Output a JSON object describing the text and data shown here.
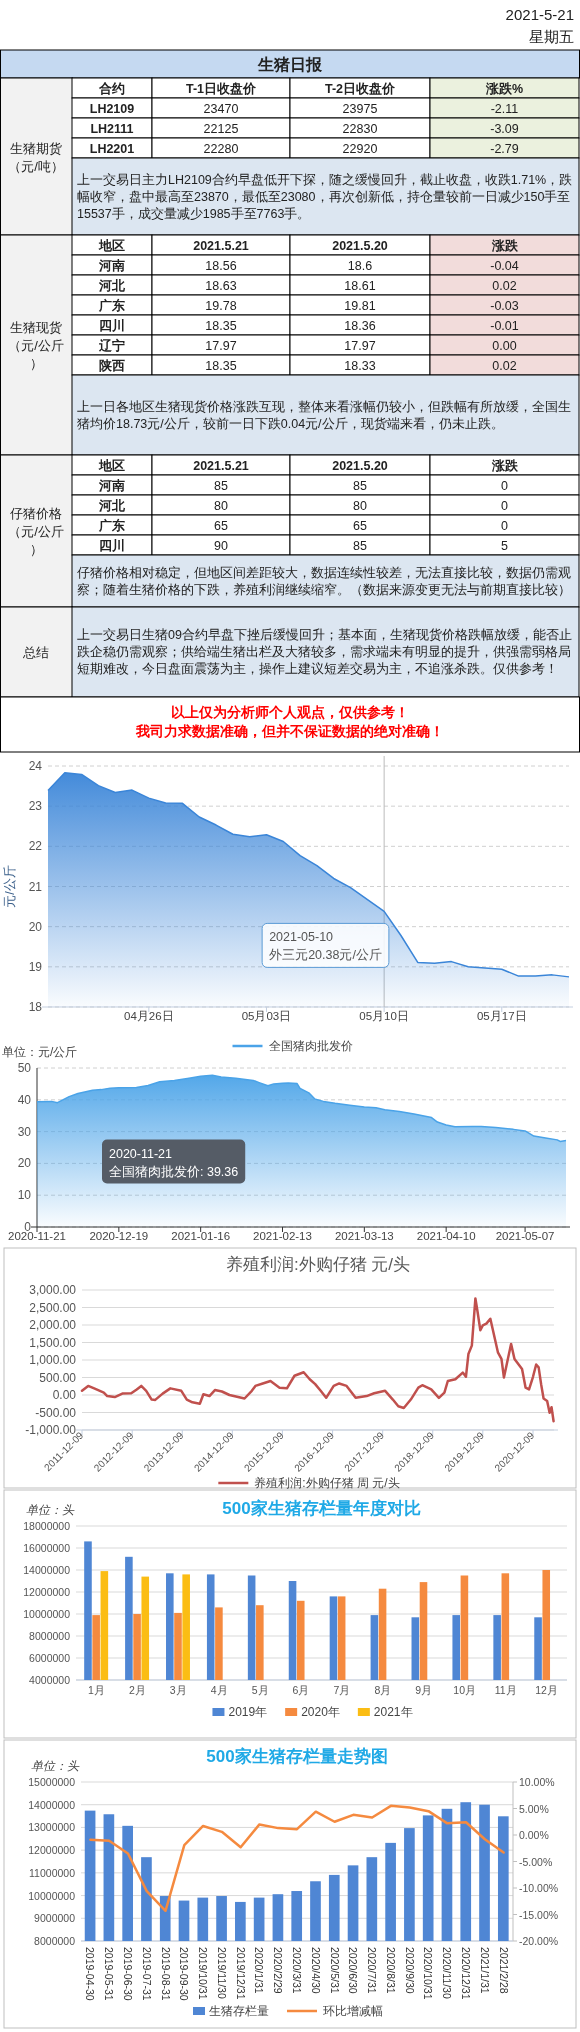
{
  "chart_data": [
    {
      "type": "other",
      "title": "生猪日报",
      "annotations": [
        "2021-5-21",
        "星期五"
      ]
    },
    {
      "type": "other",
      "ylabel": "生猪期货（元/吨）",
      "categories": [
        "合约",
        "T-1日收盘价",
        "T-2日收盘价",
        "涨跌%"
      ],
      "y_categories": [
        "LH2109",
        "LH2111",
        "LH2201"
      ],
      "cell_labels": [
        [
          "23470",
          "23975",
          "-2.11"
        ],
        [
          "22125",
          "22830",
          "-3.09"
        ],
        [
          "22280",
          "22920",
          "-2.79"
        ]
      ],
      "colors": [
        null,
        null,
        null,
        "#ebf1de"
      ],
      "annotations": [
        "上一交易日主力LH2109合约早盘低开下探，随之缓慢回升，截止收盘，收跌1.71%，跌幅收窄，盘中最高至23870，最低至23080，再次创新低，持仓量较前一日减少150手至15537手，成交量减少1985手至7763手。"
      ]
    },
    {
      "type": "other",
      "ylabel": "生猪现货（元/公斤）",
      "categories": [
        "地区",
        "2021.5.21",
        "2021.5.20",
        "涨跌"
      ],
      "y_categories": [
        "河南",
        "河北",
        "广东",
        "四川",
        "辽宁",
        "陕西"
      ],
      "cell_labels": [
        [
          "18.56",
          "18.6",
          "-0.04"
        ],
        [
          "18.63",
          "18.61",
          "0.02"
        ],
        [
          "19.78",
          "19.81",
          "-0.03"
        ],
        [
          "18.35",
          "18.36",
          "-0.01"
        ],
        [
          "17.97",
          "17.97",
          "0.00"
        ],
        [
          "18.35",
          "18.33",
          "0.02"
        ]
      ],
      "colors": [
        null,
        null,
        null,
        "#f2dcdb"
      ],
      "annotations": [
        "上一日各地区生猪现货价格涨跌互现，整体来看涨幅仍较小，但跌幅有所放缓，全国生猪均价18.73元/公斤，较前一日下跌0.04元/公斤，现货端来看，仍未止跌。"
      ]
    },
    {
      "type": "other",
      "ylabel": "仔猪价格（元/公斤）",
      "categories": [
        "地区",
        "2021.5.21",
        "2021.5.20",
        "涨跌"
      ],
      "y_categories": [
        "河南",
        "河北",
        "广东",
        "四川"
      ],
      "cell_labels": [
        [
          "85",
          "85",
          "0"
        ],
        [
          "80",
          "80",
          "0"
        ],
        [
          "65",
          "65",
          "0"
        ],
        [
          "90",
          "85",
          "5"
        ]
      ],
      "annotations": [
        "仔猪价格相对稳定，但地区间差距较大，数据连续性较差，无法直接比较，数据仍需观察；随着生猪价格的下跌，养殖利润继续缩窄。（数据来源变更无法与前期直接比较）"
      ]
    },
    {
      "type": "other",
      "ylabel": "总结",
      "annotations": [
        "上一交易日生猪09合约早盘下挫后缓慢回升；基本面，生猪现货价格跌幅放缓，能否止跌企稳仍需观察；供给端生猪出栏及大猪较多，需求端未有明显的提升，供强需弱格局短期难改，今日盘面震荡为主，操作上建议短差交易为主，不追涨杀跌。仅供参考！"
      ]
    },
    {
      "type": "other",
      "color": "#ff0000",
      "annotations": [
        "以上仅为分析师个人观点，仅供参考！",
        "我司力求数据准确，但并不保证数据的绝对准确！"
      ]
    },
    {
      "type": "area",
      "ylabel": "元/公斤",
      "x": [
        "2021-04-20",
        "2021-04-21",
        "2021-04-22",
        "2021-04-23",
        "2021-04-24",
        "2021-04-25",
        "2021-04-26",
        "2021-04-27",
        "2021-04-28",
        "2021-04-29",
        "2021-04-30",
        "2021-05-01",
        "2021-05-02",
        "2021-05-03",
        "2021-05-04",
        "2021-05-05",
        "2021-05-06",
        "2021-05-07",
        "2021-05-08",
        "2021-05-10",
        "2021-05-11",
        "2021-05-12",
        "2021-05-13",
        "2021-05-14",
        "2021-05-15",
        "2021-05-16",
        "2021-05-17",
        "2021-05-18",
        "2021-05-19",
        "2021-05-20",
        "2021-05-21"
      ],
      "series": [
        {
          "color": "#3a85d8",
          "values": [
            23.39,
            23.83,
            23.79,
            23.51,
            23.34,
            23.4,
            23.2,
            23.08,
            23.07,
            22.73,
            22.53,
            22.3,
            22.24,
            22.29,
            22.12,
            21.77,
            21.52,
            21.2,
            20.97,
            20.38,
            19.78,
            19.11,
            19.09,
            19.13,
            19.0,
            18.97,
            18.94,
            18.77,
            18.77,
            18.8,
            18.75
          ]
        }
      ],
      "ref_lines": [
        {
          "axis": "x",
          "value": "2021-05-10",
          "color": "#bbbbbb"
        }
      ],
      "xlim": [
        "2021-04-20",
        "2021-05-21"
      ],
      "xticks": [
        {
          "value": "2021-04-26",
          "label": "04月26日"
        },
        {
          "value": "2021-05-03",
          "label": "05月03日"
        },
        {
          "value": "2021-05-10",
          "label": "05月10日"
        },
        {
          "value": "2021-05-17",
          "label": "05月17日"
        }
      ],
      "ylim": [
        18,
        24
      ],
      "yticks": [
        18,
        19,
        20,
        21,
        22,
        23,
        24
      ],
      "grid": "y",
      "annotations": [
        {
          "text": "2021-05-10\n外三元20.38元/公斤",
          "x": "2021-05-10",
          "y": 20.38
        }
      ]
    },
    {
      "type": "area",
      "ylabel": "单位：元/公斤",
      "legend": "top",
      "x": [
        "2020-11-21",
        "2020-11-26",
        "2020-11-28",
        "2020-12-02",
        "2020-12-05",
        "2020-12-10",
        "2020-12-13",
        "2020-12-16",
        "2020-12-19",
        "2020-12-25",
        "2020-12-29",
        "2021-01-02",
        "2021-01-07",
        "2021-01-12",
        "2021-01-16",
        "2021-01-20",
        "2021-01-23",
        "2021-01-28",
        "2021-02-03",
        "2021-02-05",
        "2021-02-08",
        "2021-02-10",
        "2021-02-13",
        "2021-02-15",
        "2021-02-18",
        "2021-02-19",
        "2021-02-22",
        "2021-02-24",
        "2021-02-27",
        "2021-03-03",
        "2021-03-08",
        "2021-03-13",
        "2021-03-17",
        "2021-03-20",
        "2021-03-25",
        "2021-03-30",
        "2021-04-05",
        "2021-04-07",
        "2021-04-10",
        "2021-04-13",
        "2021-04-19",
        "2021-04-22",
        "2021-04-27",
        "2021-05-03",
        "2021-05-07",
        "2021-05-10",
        "2021-05-14",
        "2021-05-18",
        "2021-05-19",
        "2021-05-21"
      ],
      "series": [
        {
          "name": "全国猪肉批发价",
          "color": "#4aa3e8",
          "values": [
            39.36,
            39.5,
            39.1,
            41.0,
            42.0,
            43.0,
            43.2,
            43.6,
            43.8,
            43.9,
            44.5,
            45.7,
            46.1,
            46.8,
            47.4,
            47.7,
            47.2,
            46.8,
            46.1,
            45.4,
            44.4,
            45.0,
            45.2,
            45.3,
            45.1,
            43.6,
            42.2,
            40.3,
            39.5,
            38.9,
            38.3,
            37.7,
            37.5,
            36.9,
            36.3,
            35.5,
            34.4,
            33.0,
            32.1,
            31.5,
            31.6,
            31.6,
            31.3,
            30.7,
            30.2,
            28.6,
            28.0,
            27.4,
            26.9,
            27.2
          ]
        }
      ],
      "xlim": [
        "2020-11-21",
        "2021-05-21"
      ],
      "xticks": [
        "2020-11-21",
        "2020-12-19",
        "2021-01-16",
        "2021-02-13",
        "2021-03-13",
        "2021-04-10",
        "2021-05-07"
      ],
      "ylim": [
        0,
        50
      ],
      "yticks": [
        0,
        10,
        20,
        30,
        40,
        50
      ],
      "grid": "y",
      "annotations": [
        "2020-11-21\n全国猪肉批发价: 39.36"
      ]
    },
    {
      "type": "line",
      "title": "养殖利润:外购仔猪 元/头",
      "legend": "bottom",
      "x": [
        "2011-12-09",
        "2012-01-23",
        "2012-03-11",
        "2012-05-16",
        "2012-06-10",
        "2012-08-04",
        "2012-09-28",
        "2012-12-02",
        "2013-01-11",
        "2013-02-13",
        "2013-03-21",
        "2013-04-30",
        "2013-05-26",
        "2013-07-19",
        "2013-09-13",
        "2013-12-02",
        "2014-01-11",
        "2014-02-21",
        "2014-04-16",
        "2014-05-12",
        "2014-06-25",
        "2014-08-04",
        "2014-09-24",
        "2014-11-18",
        "2015-03-08",
        "2015-04-30",
        "2015-05-26",
        "2015-07-19",
        "2015-09-13",
        "2015-11-18",
        "2016-01-11",
        "2016-03-06",
        "2016-05-12",
        "2016-06-25",
        "2016-08-04",
        "2016-09-13",
        "2016-10-23",
        "2016-12-17",
        "2017-01-26",
        "2017-03-21",
        "2017-05-26",
        "2017-08-14",
        "2017-10-08",
        "2017-12-27",
        "2018-02-21",
        "2018-04-02",
        "2018-05-12",
        "2018-07-02",
        "2018-08-26",
        "2018-09-24",
        "2018-11-28",
        "2019-01-23",
        "2019-03-04",
        "2019-03-29",
        "2019-05-23",
        "2019-07-16",
        "2019-08-08",
        "2019-08-26",
        "2019-09-20",
        "2019-10-16",
        "2019-10-30",
        "2019-11-21",
        "2019-12-09",
        "2020-01-04",
        "2020-02-02",
        "2020-03-28",
        "2020-04-23",
        "2020-05-11",
        "2020-07-02",
        "2020-07-27",
        "2020-09-20",
        "2020-10-16",
        "2020-11-10",
        "2020-12-09",
        "2021-01-01",
        "2021-01-19",
        "2021-02-06",
        "2021-02-24",
        "2021-03-22",
        "2021-04-09",
        "2021-04-23",
        "2021-05-08"
      ],
      "series": [
        {
          "name": "养殖利润:外购仔猪 周 元/头",
          "color": "#c0504d",
          "values": [
            120,
            260,
            180,
            70,
            -30,
            -60,
            40,
            50,
            160,
            260,
            120,
            -130,
            -140,
            40,
            190,
            120,
            -130,
            -210,
            -250,
            20,
            -30,
            140,
            100,
            0,
            -100,
            120,
            260,
            330,
            400,
            210,
            190,
            550,
            650,
            450,
            310,
            120,
            -80,
            260,
            330,
            260,
            -80,
            -30,
            50,
            120,
            -130,
            -320,
            -370,
            -130,
            210,
            280,
            160,
            -80,
            70,
            400,
            450,
            640,
            520,
            1170,
            1410,
            2760,
            2420,
            1850,
            1990,
            2040,
            2180,
            1220,
            1030,
            500,
            1460,
            1030,
            740,
            210,
            160,
            520,
            870,
            790,
            310,
            -100,
            -170,
            -510,
            -350,
            -750
          ]
        }
      ],
      "xlim": [
        "2011-12-09",
        "2021-05-11"
      ],
      "xticks": [
        "2011-12-09",
        "2012-12-09",
        "2013-12-09",
        "2014-12-09",
        "2015-12-09",
        "2016-12-09",
        "2017-12-09",
        "2018-12-09",
        "2019-12-09",
        "2020-12-09"
      ],
      "ylim": [
        -1000,
        3000
      ],
      "yticks": [
        {
          "value": -1000,
          "label": "-1,000.00"
        },
        {
          "value": -500,
          "label": "-500.00"
        },
        {
          "value": 0,
          "label": "0.00"
        },
        {
          "value": 500,
          "label": "500.00"
        },
        {
          "value": 1000,
          "label": "1,000.00"
        },
        {
          "value": 1500,
          "label": "1,500.00"
        },
        {
          "value": 2000,
          "label": "2,000.00"
        },
        {
          "value": 2500,
          "label": "2,500.00"
        },
        {
          "value": 3000,
          "label": "3,000.00"
        }
      ],
      "grid": "y"
    },
    {
      "type": "bar",
      "title": "500家生猪存栏量年度对比",
      "ylabel": "单位：头",
      "legend": "bottom",
      "categories": [
        "1月",
        "2月",
        "3月",
        "4月",
        "5月",
        "6月",
        "7月",
        "8月",
        "9月",
        "10月",
        "11月",
        "12月"
      ],
      "series": [
        {
          "name": "2019年",
          "color": "#4f86d4",
          "values": [
            16600000,
            15200000,
            13700000,
            13600000,
            13500000,
            13000000,
            11600000,
            9900000,
            9700000,
            9900000,
            9900000,
            9700000
          ]
        },
        {
          "name": "2020年",
          "color": "#f58a3f",
          "values": [
            9900000,
            10000000,
            10100000,
            10600000,
            10800000,
            11200000,
            11600000,
            12300000,
            12900000,
            13500000,
            13700000,
            14000000
          ]
        },
        {
          "name": "2021年",
          "color": "#fbbd14",
          "values": [
            13900000,
            13400000,
            13600000,
            null,
            null,
            null,
            null,
            null,
            null,
            null,
            null,
            null
          ]
        }
      ],
      "ylim": [
        4000000,
        18000000
      ],
      "yticks": [
        4000000,
        6000000,
        8000000,
        10000000,
        12000000,
        14000000,
        16000000,
        18000000
      ],
      "grid": "y"
    },
    {
      "type": "bar",
      "title": "500家生猪存栏量走势图",
      "ylabel": "单位：头",
      "legend": "bottom",
      "categories": [
        "2019-04-30",
        "2019-05-31",
        "2019-06-30",
        "2019-07-31",
        "2019-08-31",
        "2019-09-30",
        "2019/10/31",
        "2019/11/30",
        "2019/12/31",
        "2020/1/31",
        "2020/2/29",
        "2020/3/31",
        "2020/4/30",
        "2020/5/31",
        "2020/6/30",
        "2020/7/31",
        "2020/8/31",
        "2020/9/30",
        "2020/10/31",
        "2020/11/30",
        "2020/12/31",
        "2021/1/31",
        "2021/2/28"
      ],
      "series": [
        {
          "name": "生猪存栏量",
          "color": "#4f86d4",
          "values": [
            13740000,
            13580000,
            13070000,
            11690000,
            9980000,
            9780000,
            9910000,
            9980000,
            9720000,
            9910000,
            10060000,
            10200000,
            10630000,
            10910000,
            11330000,
            11690000,
            12320000,
            12970000,
            13530000,
            13820000,
            14110000,
            14000000,
            13490000
          ]
        },
        {
          "name": "环比增减幅",
          "type": "line",
          "axis": "y2",
          "color": "#f58a3f",
          "values": [
            -0.9,
            -1.1,
            -3.5,
            -10.6,
            -14.3,
            -1.9,
            1.7,
            0.6,
            -2.3,
            2.0,
            1.3,
            1.1,
            4.4,
            2.5,
            3.8,
            3.3,
            5.5,
            5.2,
            4.5,
            2.2,
            2.4,
            -0.8,
            -3.3
          ]
        }
      ],
      "ylim": [
        8000000,
        15000000
      ],
      "yticks": [
        8000000,
        9000000,
        10000000,
        11000000,
        12000000,
        13000000,
        14000000,
        15000000
      ],
      "y2lim": [
        -20,
        10
      ],
      "y2ticks": [
        {
          "value": -20,
          "label": "-20.00%"
        },
        {
          "value": -15,
          "label": "-15.00%"
        },
        {
          "value": -10,
          "label": "-10.00%"
        },
        {
          "value": -5,
          "label": "-5.00%"
        },
        {
          "value": 0,
          "label": "0.00%"
        },
        {
          "value": 5,
          "label": "5.00%"
        },
        {
          "value": 10,
          "label": "10.00%"
        }
      ],
      "grid": "y"
    }
  ]
}
